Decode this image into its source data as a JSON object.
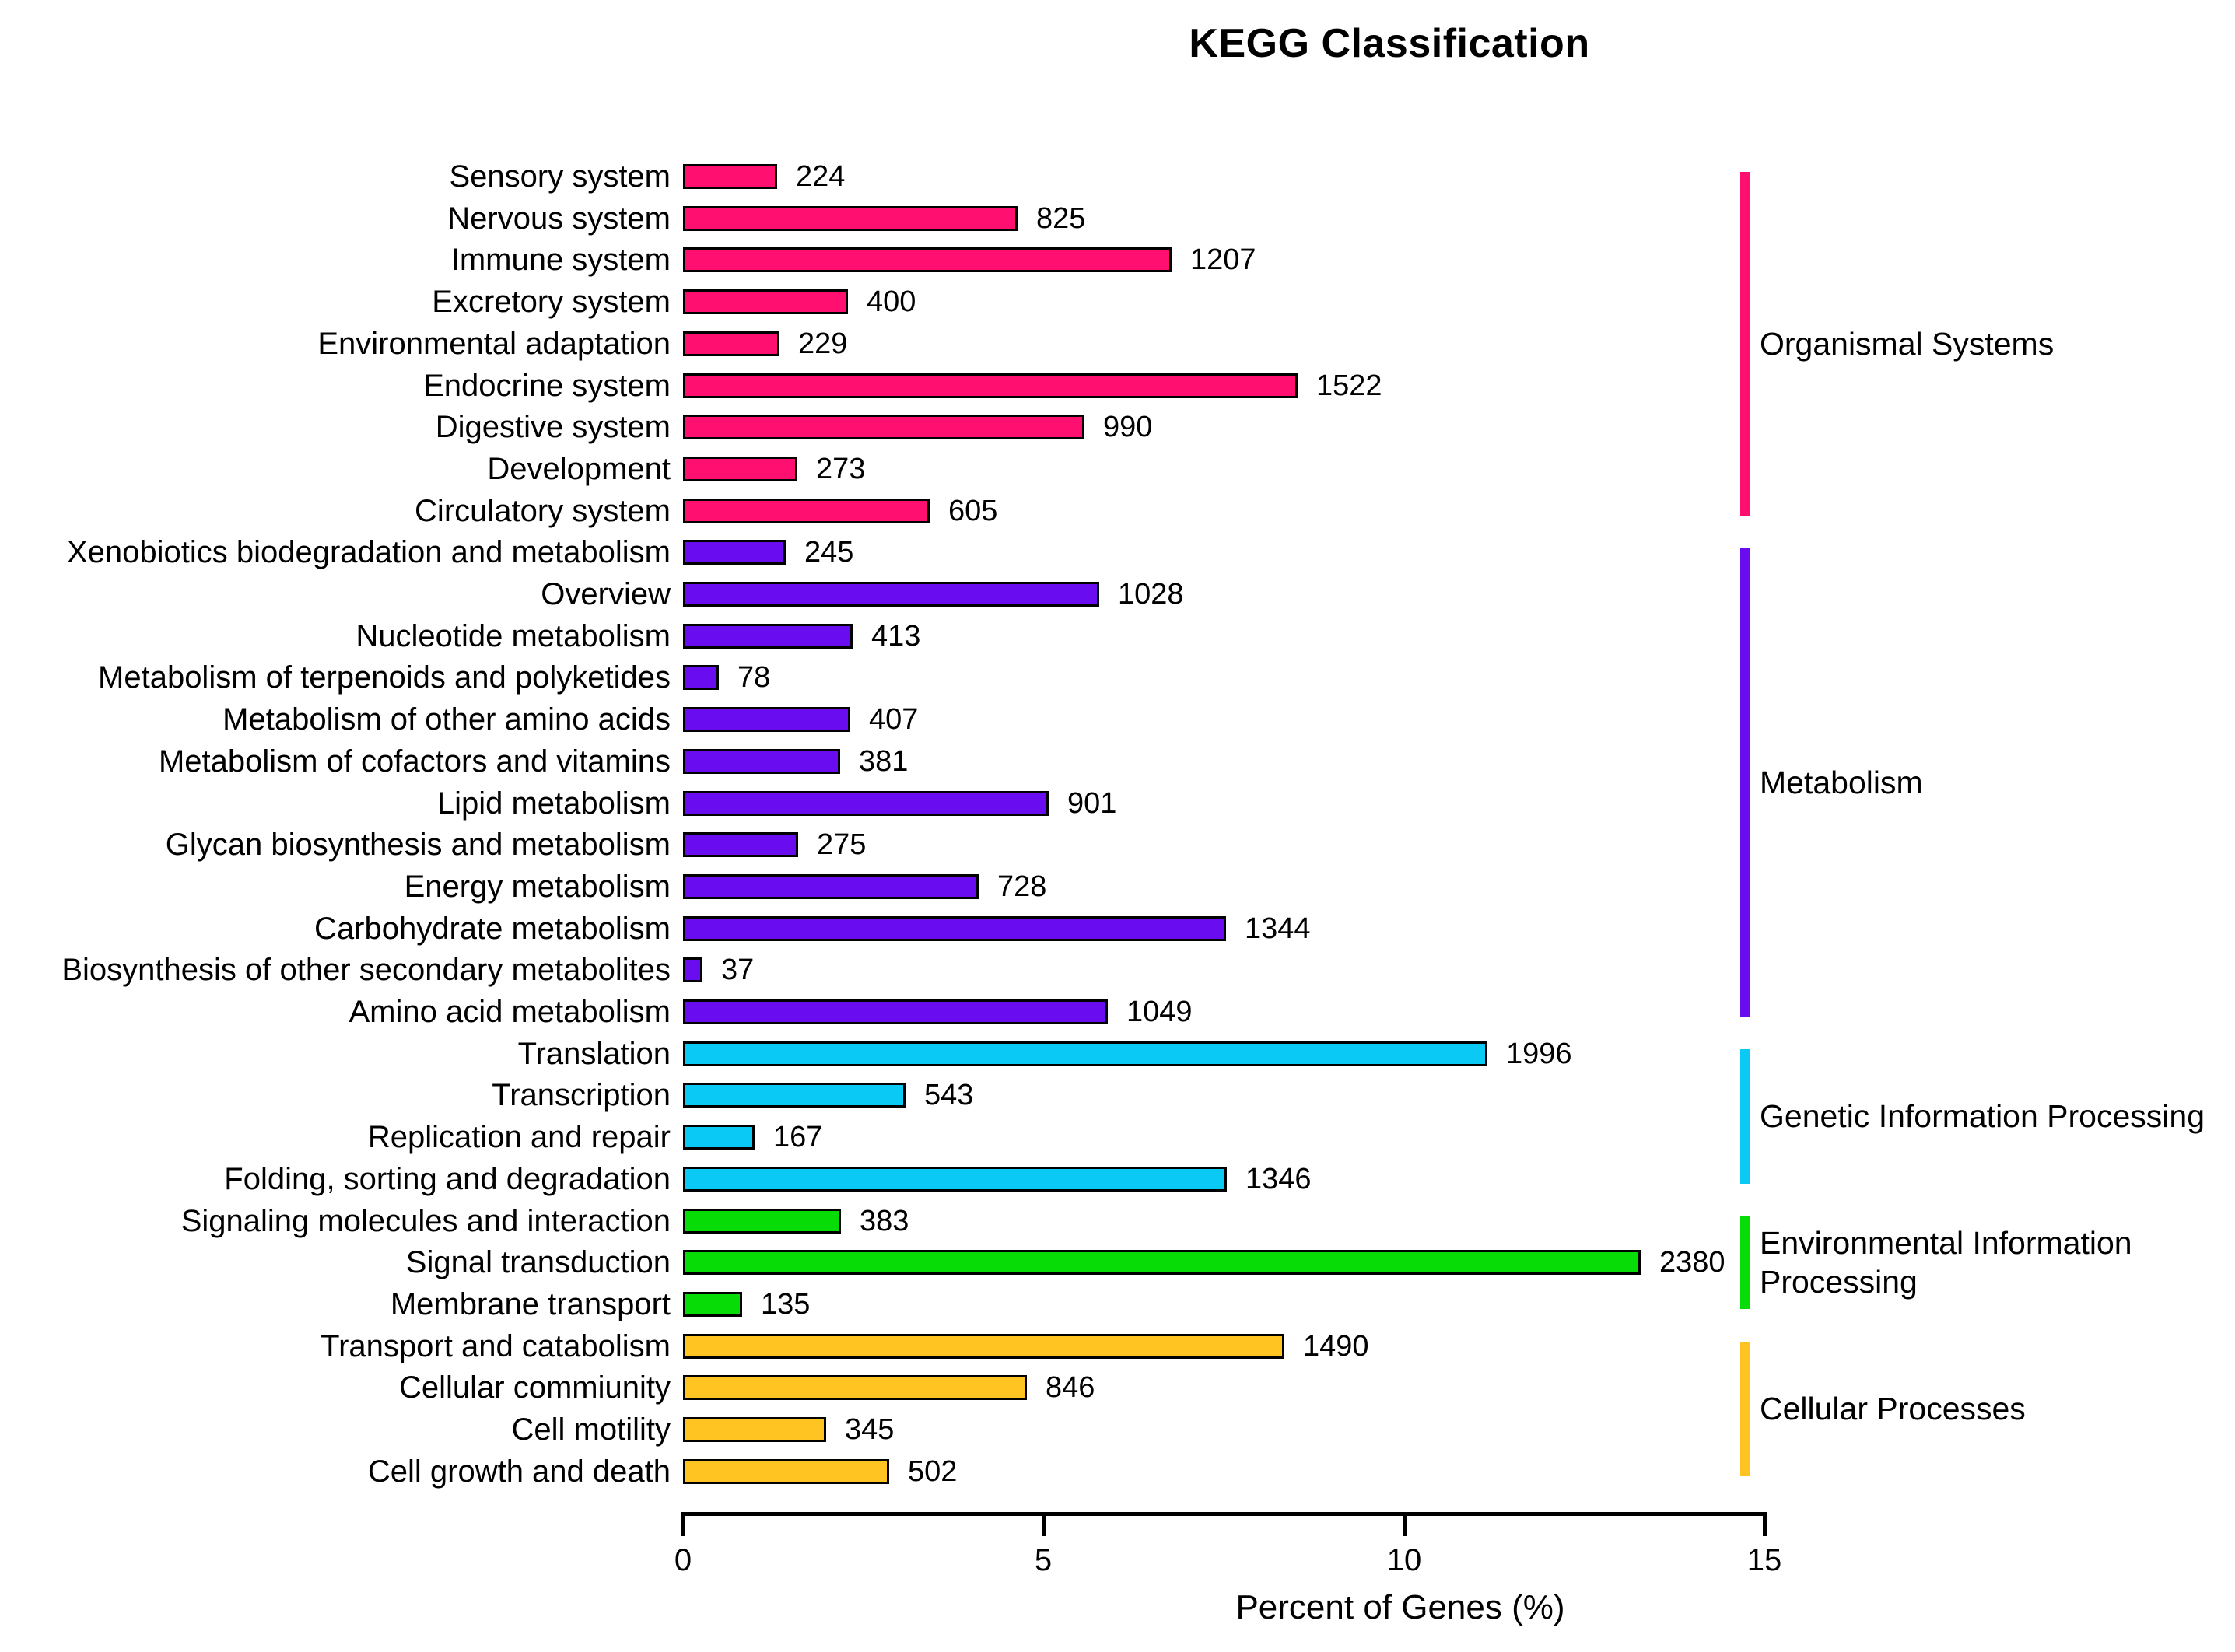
{
  "chart_data": {
    "type": "bar",
    "orientation": "horizontal",
    "title": "KEGG Classification",
    "xlabel": "Percent of Genes (%)",
    "xlim": [
      0,
      15
    ],
    "xticks": [
      0,
      5,
      10,
      15
    ],
    "grid": false,
    "legend_position": "right",
    "bar_value_meaning": "number of genes",
    "bar_length_meaning": "percent of genes",
    "groups": [
      {
        "name": "Organismal Systems",
        "color": "#FF0F6F",
        "items": [
          {
            "label": "Sensory system",
            "value": 224,
            "percent": 1.24
          },
          {
            "label": "Nervous system",
            "value": 825,
            "percent": 4.58
          },
          {
            "label": "Immune system",
            "value": 1207,
            "percent": 6.71
          },
          {
            "label": "Excretory system",
            "value": 400,
            "percent": 2.22
          },
          {
            "label": "Environmental adaptation",
            "value": 229,
            "percent": 1.27
          },
          {
            "label": "Endocrine system",
            "value": 1522,
            "percent": 8.46
          },
          {
            "label": "Digestive system",
            "value": 990,
            "percent": 5.5
          },
          {
            "label": "Development",
            "value": 273,
            "percent": 1.52
          },
          {
            "label": "Circulatory system",
            "value": 605,
            "percent": 3.36
          }
        ]
      },
      {
        "name": "Metabolism",
        "color": "#6A0CF0",
        "items": [
          {
            "label": "Xenobiotics biodegradation and metabolism",
            "value": 245,
            "percent": 1.36
          },
          {
            "label": "Overview",
            "value": 1028,
            "percent": 5.71
          },
          {
            "label": "Nucleotide metabolism",
            "value": 413,
            "percent": 2.29
          },
          {
            "label": "Metabolism of terpenoids and polyketides",
            "value": 78,
            "percent": 0.43
          },
          {
            "label": "Metabolism of other amino acids",
            "value": 407,
            "percent": 2.26
          },
          {
            "label": "Metabolism of cofactors and vitamins",
            "value": 381,
            "percent": 2.12
          },
          {
            "label": "Lipid metabolism",
            "value": 901,
            "percent": 5.01
          },
          {
            "label": "Glycan biosynthesis and metabolism",
            "value": 275,
            "percent": 1.53
          },
          {
            "label": "Energy metabolism",
            "value": 728,
            "percent": 4.04
          },
          {
            "label": "Carbohydrate metabolism",
            "value": 1344,
            "percent": 7.47
          },
          {
            "label": "Biosynthesis of other secondary metabolites",
            "value": 37,
            "percent": 0.21
          },
          {
            "label": "Amino acid metabolism",
            "value": 1049,
            "percent": 5.83
          }
        ]
      },
      {
        "name": "Genetic Information Processing",
        "color": "#0AC9F5",
        "items": [
          {
            "label": "Translation",
            "value": 1996,
            "percent": 11.09
          },
          {
            "label": "Transcription",
            "value": 543,
            "percent": 3.02
          },
          {
            "label": "Replication and repair",
            "value": 167,
            "percent": 0.93
          },
          {
            "label": "Folding, sorting and degradation",
            "value": 1346,
            "percent": 7.48
          }
        ]
      },
      {
        "name": "Environmental Information Processing",
        "color": "#07DC07",
        "items": [
          {
            "label": "Signaling molecules and interaction",
            "value": 383,
            "percent": 2.13
          },
          {
            "label": "Signal transduction",
            "value": 2380,
            "percent": 13.22
          },
          {
            "label": "Membrane transport",
            "value": 135,
            "percent": 0.75
          }
        ]
      },
      {
        "name": "Cellular Processes",
        "color": "#FFC422",
        "items": [
          {
            "label": "Transport and catabolism",
            "value": 1490,
            "percent": 8.28
          },
          {
            "label": "Cellular commiunity",
            "value": 846,
            "percent": 4.7
          },
          {
            "label": "Cell motility",
            "value": 345,
            "percent": 1.92
          },
          {
            "label": "Cell growth and death",
            "value": 502,
            "percent": 2.79
          }
        ]
      }
    ]
  }
}
